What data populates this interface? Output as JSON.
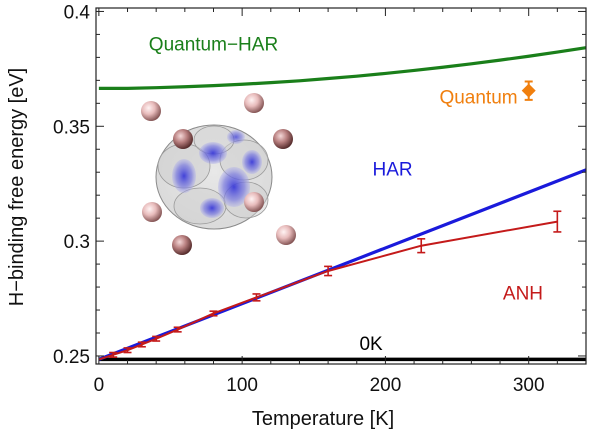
{
  "chart_data": {
    "type": "line",
    "xlabel": "Temperature [K]",
    "ylabel": "H−binding free energy [eV]",
    "xlim": [
      -2,
      340
    ],
    "ylim": [
      0.2465,
      0.4015
    ],
    "xticks": [
      0,
      100,
      200,
      300
    ],
    "xtick_labels": [
      "0",
      "100",
      "200",
      "300"
    ],
    "yticks": [
      0.25,
      0.3,
      0.35,
      0.4
    ],
    "ytick_labels": [
      "0.25",
      "0.3",
      "0.35",
      "0.4"
    ],
    "grid": false,
    "series": [
      {
        "name": "Quantum−HAR",
        "color": "#1a7f1a",
        "style": "line",
        "x": [
          0,
          20,
          40,
          60,
          80,
          100,
          120,
          140,
          160,
          180,
          200,
          220,
          240,
          260,
          280,
          300,
          320,
          340
        ],
        "y": [
          0.3665,
          0.3665,
          0.3668,
          0.3672,
          0.3677,
          0.3683,
          0.369,
          0.3698,
          0.3708,
          0.3718,
          0.373,
          0.3743,
          0.3757,
          0.3772,
          0.3788,
          0.3805,
          0.3823,
          0.3842
        ]
      },
      {
        "name": "HAR",
        "color": "#1a1adb",
        "style": "line",
        "x": [
          0,
          340
        ],
        "y": [
          0.2485,
          0.331
        ]
      },
      {
        "name": "ANH",
        "color": "#c41a1a",
        "style": "line-errorbar",
        "x": [
          0,
          10,
          20,
          30,
          40,
          55,
          80,
          110,
          160,
          225,
          320
        ],
        "y": [
          0.2485,
          0.2505,
          0.2525,
          0.255,
          0.2575,
          0.2615,
          0.2685,
          0.2755,
          0.287,
          0.298,
          0.3085
        ],
        "err": [
          0,
          0.001,
          0.001,
          0.001,
          0.001,
          0.001,
          0.001,
          0.0015,
          0.002,
          0.003,
          0.0045
        ]
      },
      {
        "name": "0K",
        "color": "#000000",
        "style": "line",
        "x": [
          0,
          340
        ],
        "y": [
          0.2485,
          0.2485
        ]
      },
      {
        "name": "Quantum",
        "color": "#f07f0e",
        "style": "point-errorbar",
        "x": [
          300
        ],
        "y": [
          0.3655
        ],
        "err": [
          0.004
        ]
      }
    ],
    "annotations": [
      {
        "text": "Quantum−HAR",
        "color": "#1a7f1a",
        "x": 80,
        "y": 0.383
      },
      {
        "text": "Quantum",
        "color": "#f07f0e",
        "x": 265,
        "y": 0.36
      },
      {
        "text": "HAR",
        "color": "#1a1adb",
        "x": 205,
        "y": 0.3285
      },
      {
        "text": "ANH",
        "color": "#c41a1a",
        "x": 296,
        "y": 0.2745
      },
      {
        "text": "0K",
        "color": "#000000",
        "x": 190,
        "y": 0.2525
      }
    ]
  }
}
